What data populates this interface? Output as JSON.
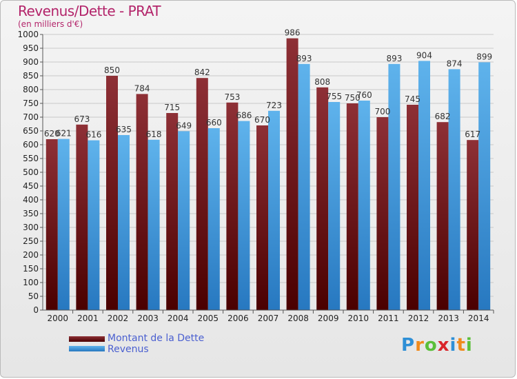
{
  "header": {
    "title": "Revenus/Dette - PRAT",
    "subtitle": "(en milliers d'€)"
  },
  "legend": {
    "items": [
      {
        "label": "Montant de la Dette",
        "color": "#7a1e22"
      },
      {
        "label": "Revenus",
        "color": "#4ea6e4"
      }
    ]
  },
  "logo": {
    "letters": [
      "P",
      "r",
      "o",
      "x",
      "i",
      "t",
      "i"
    ],
    "colors": [
      "#2e8fd6",
      "#f08a1c",
      "#5bbf3a",
      "#d9252a",
      "#2e8fd6",
      "#f08a1c",
      "#5bbf3a"
    ]
  },
  "chart_data": {
    "type": "bar",
    "categories": [
      "2000",
      "2001",
      "2002",
      "2003",
      "2004",
      "2005",
      "2006",
      "2007",
      "2008",
      "2009",
      "2010",
      "2011",
      "2012",
      "2013",
      "2014"
    ],
    "series": [
      {
        "name": "Montant de la Dette",
        "values": [
          620,
          673,
          850,
          784,
          715,
          842,
          753,
          670,
          986,
          808,
          750,
          700,
          745,
          682,
          617
        ]
      },
      {
        "name": "Revenus",
        "values": [
          621,
          616,
          635,
          618,
          649,
          660,
          686,
          723,
          893,
          755,
          760,
          893,
          904,
          874,
          899
        ]
      }
    ],
    "ylim": [
      0,
      1000
    ],
    "ytick_step": 50,
    "grid": true,
    "legend_position": "bottom-left"
  }
}
